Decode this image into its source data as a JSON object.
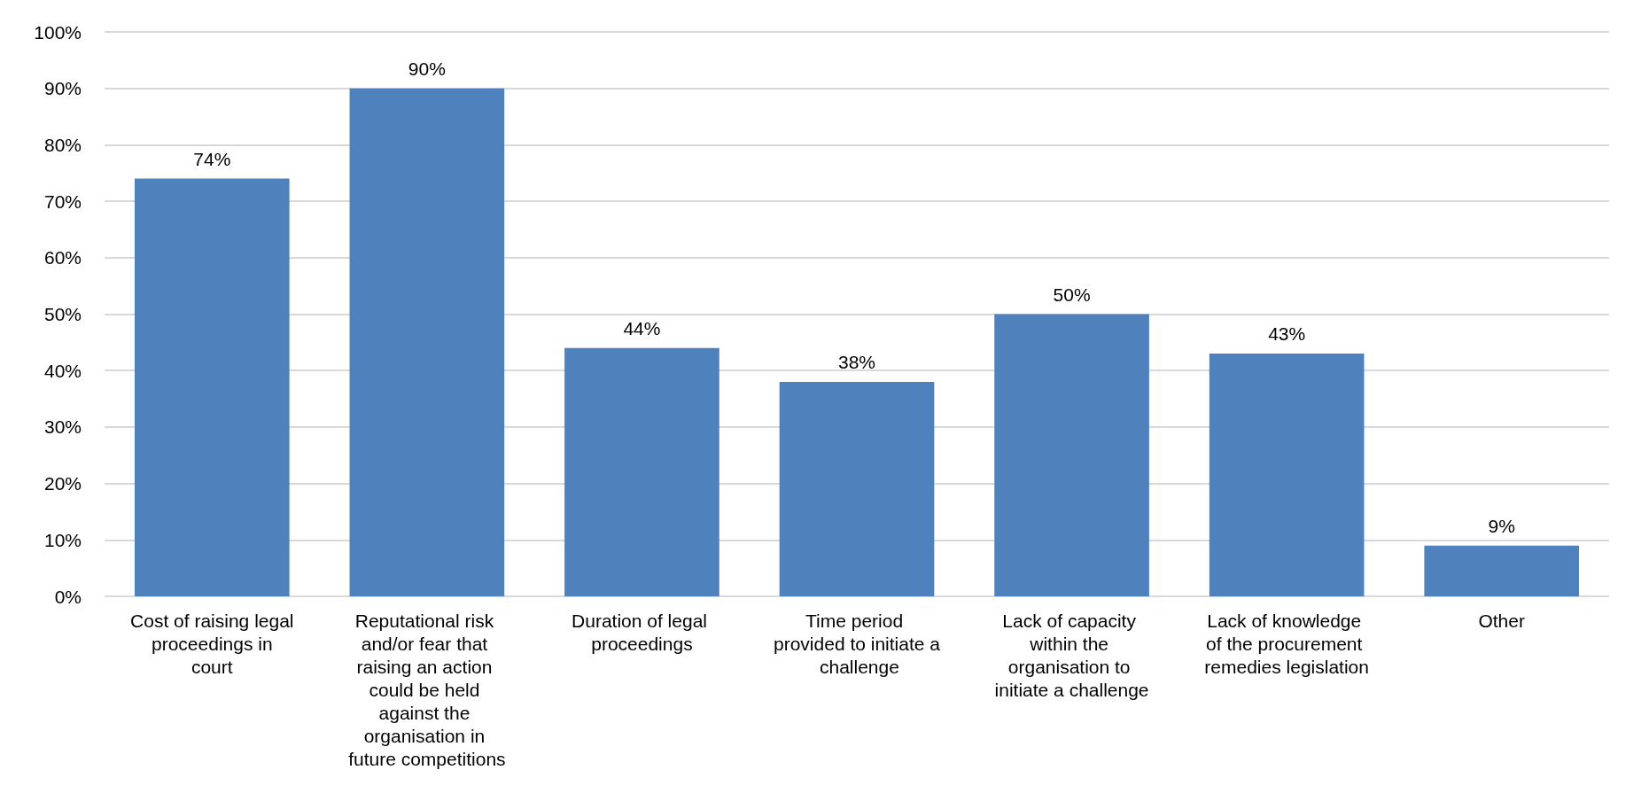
{
  "chart_data": {
    "type": "bar",
    "categories": [
      "Cost of raising legal proceedings in court",
      "Reputational risk and/or fear that raising an action could be held against the organisation in future competitions",
      "Duration of legal proceedings",
      "Time period provided to initiate a challenge",
      "Lack of capacity within the organisation to initiate a challenge",
      "Lack of knowledge of the procurement remedies legislation",
      "Other"
    ],
    "values": [
      74,
      90,
      44,
      38,
      50,
      43,
      9
    ],
    "value_labels": [
      "74%",
      "90%",
      "44%",
      "38%",
      "50%",
      "43%",
      "9%"
    ],
    "color": "#4f81bd",
    "ylim": [
      0,
      100
    ],
    "yticks": [
      {
        "value": 0,
        "label": "0%"
      },
      {
        "value": 10,
        "label": "10%"
      },
      {
        "value": 20,
        "label": "20%"
      },
      {
        "value": 30,
        "label": "30%"
      },
      {
        "value": 40,
        "label": "40%"
      },
      {
        "value": 50,
        "label": "50%"
      },
      {
        "value": 60,
        "label": "60%"
      },
      {
        "value": 70,
        "label": "70%"
      },
      {
        "value": 80,
        "label": "80%"
      },
      {
        "value": 90,
        "label": "90%"
      },
      {
        "value": 100,
        "label": "100%"
      }
    ],
    "grid": "y"
  }
}
